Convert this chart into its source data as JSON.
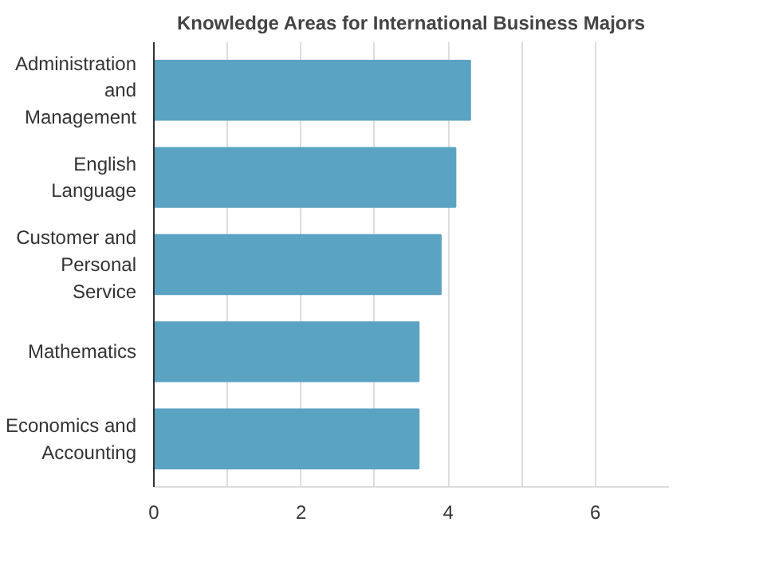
{
  "chart_data": {
    "type": "bar",
    "orientation": "horizontal",
    "title": "Knowledge Areas for International Business Majors",
    "categories": [
      "Administration and Management",
      "English Language",
      "Customer and Personal Service",
      "Mathematics",
      "Economics and Accounting"
    ],
    "values": [
      4.3,
      4.1,
      3.9,
      3.6,
      3.6
    ],
    "color": "#5ba3c2",
    "xlim": [
      0,
      7
    ],
    "xticks": [
      0,
      {
        "value": 1,
        "label": null
      },
      2,
      {
        "value": 3,
        "label": null
      },
      4,
      {
        "value": 5,
        "label": null
      },
      6
    ],
    "grid": "x"
  }
}
